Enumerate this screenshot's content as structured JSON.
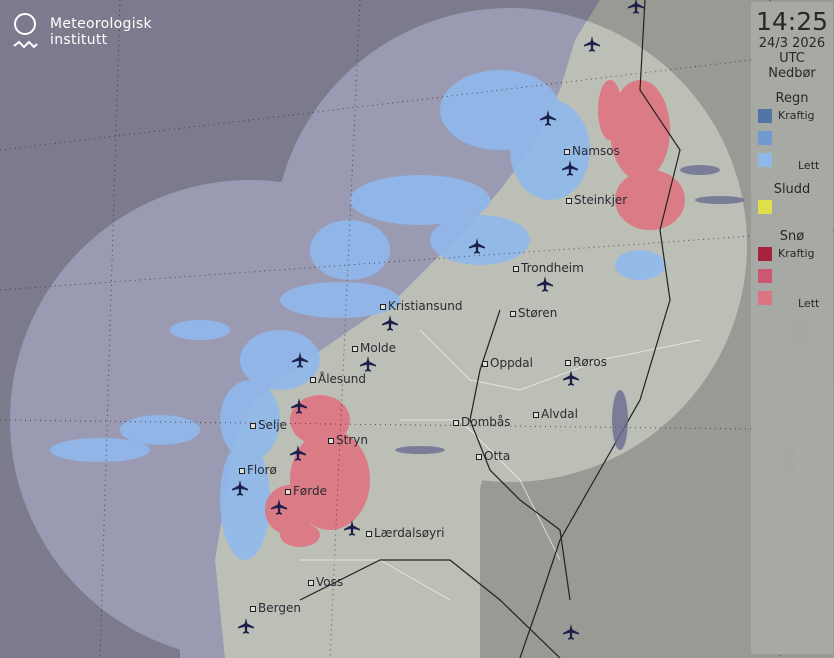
{
  "brand": {
    "name_line1": "Meteorologisk",
    "name_line2": "institutt",
    "logo_icon": "met-circle-wave-logo"
  },
  "legend": {
    "time": "14:25",
    "date": "24/3 2026",
    "timezone": "UTC",
    "title": "Nedbør",
    "groups": [
      {
        "label": "Regn",
        "swatches": [
          {
            "color": "#4f74a8",
            "label": "Kraftig"
          },
          {
            "color": "#6f9bd4",
            "label": ""
          },
          {
            "color": "#8fb9ec",
            "label": "Lett"
          }
        ]
      },
      {
        "label": "Sludd",
        "swatches": [
          {
            "color": "#e5e24a",
            "label": ""
          }
        ]
      },
      {
        "label": "Snø",
        "swatches": [
          {
            "color": "#a81c38",
            "label": "Kraftig"
          },
          {
            "color": "#cf5470",
            "label": ""
          },
          {
            "color": "#de7480",
            "label": "Lett"
          }
        ]
      }
    ]
  },
  "cities": [
    "Namsos",
    "Steinkjer",
    "Trondheim",
    "Kristiansund",
    "Molde",
    "Ålesund",
    "Støren",
    "Oppdal",
    "Røros",
    "Selje",
    "Stryn",
    "Dombås",
    "Alvdal",
    "Otta",
    "Florø",
    "Førde",
    "Lærdalsøyri",
    "Voss",
    "Bergen"
  ],
  "airport_icon": "airplane-icon"
}
